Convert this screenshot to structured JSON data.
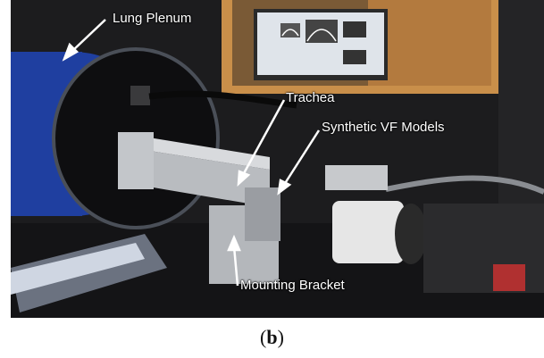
{
  "photo": {
    "labels": {
      "lung_plenum": "Lung Plenum",
      "trachea": "Trachea",
      "vf_models": "Synthetic VF Models",
      "mounting_bracket": "Mounting Bracket"
    },
    "colors": {
      "background": "#1c1c1e",
      "plenum_blue": "#1f3fa0",
      "aluminum": "#b9bcc0",
      "window_frame": "#c98f4a",
      "monitor": "#dfe4ea"
    }
  },
  "caption": {
    "open": "(",
    "letter": "b",
    "close": ")"
  }
}
